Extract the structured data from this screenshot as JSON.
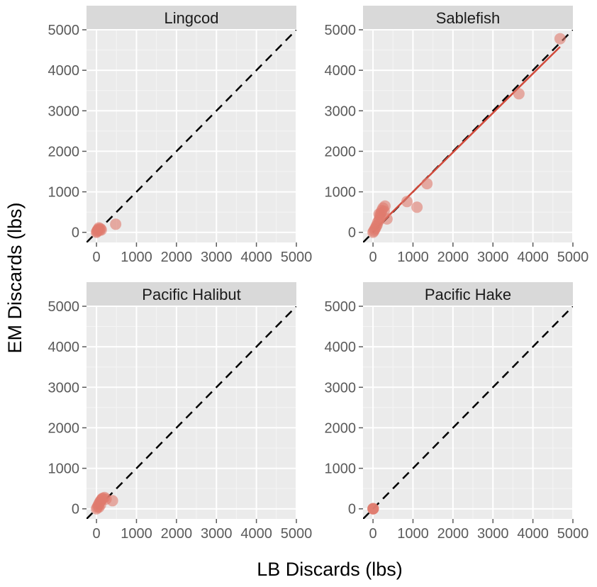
{
  "chart_data": {
    "type": "scatter",
    "xlabel": "LB Discards (lbs)",
    "ylabel": "EM Discards (lbs)",
    "xlim": [
      -250,
      5000
    ],
    "ylim": [
      -250,
      5000
    ],
    "xticks": [
      0,
      1000,
      2000,
      3000,
      4000,
      5000
    ],
    "yticks": [
      0,
      1000,
      2000,
      3000,
      4000,
      5000
    ],
    "xtick_labels": [
      "0",
      "1000",
      "2000",
      "3000",
      "4000",
      "5000"
    ],
    "ytick_labels": [
      "0",
      "1000",
      "2000",
      "3000",
      "4000",
      "5000"
    ],
    "grid": true,
    "reference_line": {
      "style": "dashed",
      "color": "#000000",
      "slope": 1,
      "intercept": 0
    },
    "point_color": "#e07b6e",
    "fit_line_color": "#d1493a",
    "facets": [
      {
        "title": "Lingcod",
        "points": [
          {
            "x": 0,
            "y": 0
          },
          {
            "x": 10,
            "y": 20
          },
          {
            "x": 20,
            "y": 40
          },
          {
            "x": 30,
            "y": 60
          },
          {
            "x": 50,
            "y": 80
          },
          {
            "x": 80,
            "y": 50
          },
          {
            "x": 100,
            "y": 90
          },
          {
            "x": 60,
            "y": 110
          },
          {
            "x": 120,
            "y": 60
          },
          {
            "x": 480,
            "y": 200
          }
        ],
        "fit_line": null
      },
      {
        "title": "Sablefish",
        "points": [
          {
            "x": 0,
            "y": 0
          },
          {
            "x": 20,
            "y": 30
          },
          {
            "x": 40,
            "y": 70
          },
          {
            "x": 60,
            "y": 100
          },
          {
            "x": 80,
            "y": 150
          },
          {
            "x": 100,
            "y": 180
          },
          {
            "x": 120,
            "y": 250
          },
          {
            "x": 150,
            "y": 300
          },
          {
            "x": 170,
            "y": 350
          },
          {
            "x": 180,
            "y": 420
          },
          {
            "x": 200,
            "y": 480
          },
          {
            "x": 220,
            "y": 540
          },
          {
            "x": 250,
            "y": 600
          },
          {
            "x": 280,
            "y": 520
          },
          {
            "x": 300,
            "y": 650
          },
          {
            "x": 150,
            "y": 450
          },
          {
            "x": 350,
            "y": 330
          },
          {
            "x": 850,
            "y": 760
          },
          {
            "x": 1100,
            "y": 620
          },
          {
            "x": 1350,
            "y": 1200
          },
          {
            "x": 3650,
            "y": 3420
          },
          {
            "x": 4680,
            "y": 4780
          }
        ],
        "fit_line": {
          "x": [
            0,
            4680
          ],
          "y": [
            30,
            4580
          ]
        }
      },
      {
        "title": "Pacific Halibut",
        "points": [
          {
            "x": 0,
            "y": 0
          },
          {
            "x": 20,
            "y": 40
          },
          {
            "x": 40,
            "y": 80
          },
          {
            "x": 60,
            "y": 120
          },
          {
            "x": 80,
            "y": 160
          },
          {
            "x": 100,
            "y": 190
          },
          {
            "x": 120,
            "y": 220
          },
          {
            "x": 140,
            "y": 250
          },
          {
            "x": 160,
            "y": 260
          },
          {
            "x": 200,
            "y": 280
          },
          {
            "x": 240,
            "y": 240
          },
          {
            "x": 100,
            "y": 100
          },
          {
            "x": 60,
            "y": 40
          },
          {
            "x": 400,
            "y": 200
          }
        ],
        "fit_line": null
      },
      {
        "title": "Pacific Hake",
        "points": [
          {
            "x": 0,
            "y": 0
          },
          {
            "x": 5,
            "y": 0
          },
          {
            "x": 0,
            "y": 5
          },
          {
            "x": 8,
            "y": 4
          }
        ],
        "fit_line": null
      }
    ]
  },
  "colors": {
    "panel_bg": "#ebebeb",
    "strip_bg": "#d9d9d9",
    "grid_major": "#ffffff",
    "grid_minor": "#f5f5f5",
    "tick_label": "#5a5a5a",
    "axis_title": "#000000"
  }
}
